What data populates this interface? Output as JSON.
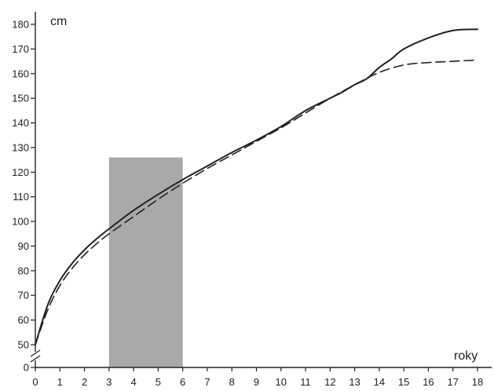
{
  "chart_data": {
    "type": "line",
    "ylabel": "cm",
    "xlabel": "roky",
    "xlim": [
      0,
      18
    ],
    "ylim": [
      50,
      180
    ],
    "y_axis_break": true,
    "x_ticks": [
      0,
      1,
      2,
      3,
      4,
      5,
      6,
      7,
      8,
      9,
      10,
      11,
      12,
      13,
      14,
      15,
      16,
      17,
      18
    ],
    "y_ticks": [
      0,
      50,
      60,
      70,
      80,
      90,
      100,
      110,
      120,
      130,
      140,
      150,
      160,
      170,
      180
    ],
    "grid": false,
    "series": [
      {
        "line_style": "solid",
        "x": [
          0,
          0.5,
          1,
          1.5,
          2,
          2.5,
          3,
          4,
          5,
          6,
          7,
          8,
          9,
          10,
          11,
          12,
          12.5,
          13,
          13.5,
          14,
          14.5,
          15,
          16,
          17,
          18
        ],
        "y": [
          50,
          66,
          76,
          83,
          88.5,
          93,
          97,
          104.5,
          111,
          117,
          122.5,
          128,
          133,
          138.5,
          145,
          150,
          152.5,
          155.5,
          158,
          162.5,
          166,
          170,
          174.5,
          177.5,
          178
        ]
      },
      {
        "line_style": "dashed",
        "x": [
          0,
          0.5,
          1,
          1.5,
          2,
          2.5,
          3,
          4,
          5,
          6,
          7,
          8,
          9,
          10,
          11,
          12,
          13,
          14,
          15,
          16,
          17,
          18
        ],
        "y": [
          50,
          64,
          74,
          81,
          86.5,
          91,
          95,
          102,
          109,
          115.5,
          121.5,
          127,
          132.5,
          138,
          144,
          150,
          155.5,
          160.5,
          163.5,
          164.5,
          165,
          165.5
        ]
      }
    ],
    "highlight": {
      "x_range": [
        3,
        6
      ],
      "y_range": [
        0,
        126
      ],
      "color": "#a9a9a9"
    },
    "colors": {
      "axis": "#222222",
      "line": "#222222"
    }
  }
}
